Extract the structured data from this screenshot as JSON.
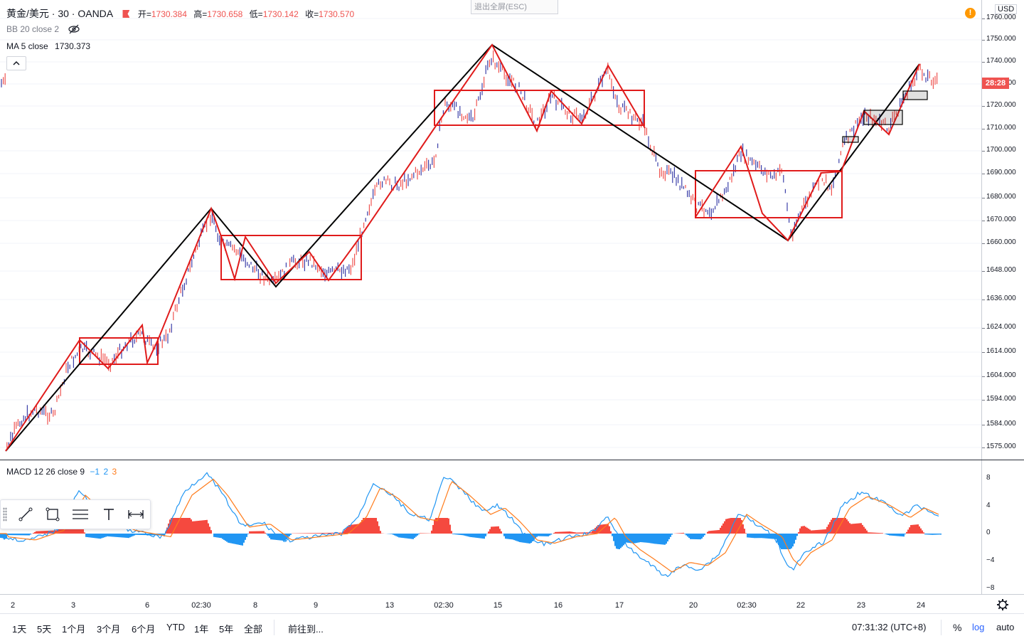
{
  "header": {
    "symbol": "黄金/美元 · 30 · OANDA",
    "open_label": "开=",
    "open_value": "1730.384",
    "high_label": "高=",
    "high_value": "1730.658",
    "low_label": "低=",
    "low_value": "1730.142",
    "close_label": "收=",
    "close_value": "1730.570",
    "exit_fullscreen": "退出全屏(ESC)"
  },
  "indicators": {
    "bb": "BB 20 close 2",
    "ma_label": "MA 5 close",
    "ma_value": "1730.373",
    "macd_label": "MACD 12 26 close 9",
    "macd_v1": "−1",
    "macd_v2": "2",
    "macd_v3": "3"
  },
  "price_scale": {
    "currency": "USD",
    "current_tag": "28:28",
    "ticks": [
      "1760.000",
      "1750.000",
      "1740.000",
      "1730.000",
      "1720.000",
      "1710.000",
      "1700.000",
      "1690.000",
      "1680.000",
      "1670.000",
      "1660.000",
      "1648.000",
      "1636.000",
      "1624.000",
      "1614.000",
      "1604.000",
      "1594.000",
      "1584.000",
      "1575.000"
    ]
  },
  "macd_scale": {
    "ticks": [
      "8",
      "4",
      "0",
      "−4",
      "−8"
    ]
  },
  "time_axis": {
    "labels": [
      "2",
      "3",
      "6",
      "02:30",
      "8",
      "9",
      "13",
      "02:30",
      "15",
      "16",
      "17",
      "20",
      "02:30",
      "22",
      "23",
      "24"
    ]
  },
  "bottom_bar": {
    "ranges": [
      "1天",
      "5天",
      "1个月",
      "3个月",
      "6个月",
      "YTD",
      "1年",
      "5年",
      "全部"
    ],
    "goto": "前往到...",
    "clock": "07:31:32 (UTC+8)",
    "pct": "%",
    "log": "log",
    "auto": "auto"
  },
  "colors": {
    "up": "#ef5350",
    "macd_pos": "#f5493f",
    "macd_neg": "#2196f3",
    "line_red": "#e01b1b",
    "line_black": "#000000",
    "macd_line": "#2196f3",
    "signal_line": "#ff7c1c"
  },
  "icons": [
    "eye-hidden-icon",
    "chevron-up-icon",
    "alert-icon",
    "gear-icon",
    "trend-line-icon",
    "rectangle-icon",
    "parallel-channel-icon",
    "text-icon",
    "measure-icon"
  ]
}
